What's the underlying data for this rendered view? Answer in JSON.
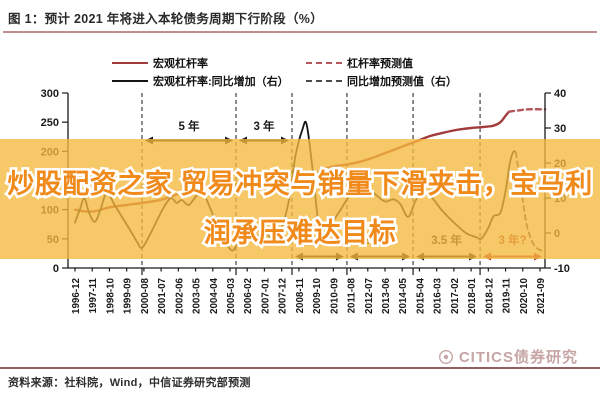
{
  "figure": {
    "title": "图 1：预计 2021 年将进入本轮债务周期下行阶段（%）",
    "title_rule_color": "#bd8f8f",
    "source": "资料来源：社科院，Wind，中信证券研究部预测",
    "watermark": "CITICS债券研究",
    "bottom_rule_color": "#8f6060"
  },
  "overlay": {
    "line1": "炒股配资之家 贸易冲突与销量下滑夹击，宝马利",
    "line2": "润承压难达目标",
    "text_color": "#f08a1b",
    "band_color": "rgba(245,184,61,0.78)"
  },
  "legend": {
    "items": [
      {
        "label": "宏观杠杆率",
        "style": "solid",
        "color": "#a23b3c"
      },
      {
        "label": "杠杆率预测值",
        "style": "dashed",
        "color": "#b4565e"
      },
      {
        "label": "宏观杠杆率:同比增加（右）",
        "style": "solid",
        "color": "#141414"
      },
      {
        "label": "同比增加预测值（右）",
        "style": "dashed",
        "color": "#4a4a4a"
      }
    ]
  },
  "chart_data": {
    "type": "line",
    "title": "预计 2021 年将进入本轮债务周期下行阶段（%）",
    "grid": false,
    "legend_position": "top",
    "x_labels": [
      "1996-12",
      "1997-11",
      "1998-10",
      "1999-09",
      "2000-08",
      "2001-07",
      "2002-06",
      "2003-05",
      "2004-04",
      "2005-03",
      "2006-02",
      "2007-01",
      "2007-12",
      "2008-11",
      "2009-10",
      "2010-09",
      "2011-08",
      "2012-07",
      "2013-06",
      "2014-05",
      "2015-04",
      "2016-03",
      "2017-02",
      "2018-01",
      "2018-12",
      "2019-11",
      "2020-10",
      "2021-09"
    ],
    "left_axis": {
      "range": [
        0,
        300
      ],
      "ticks": [
        0,
        50,
        100,
        150,
        200,
        250,
        300
      ]
    },
    "right_axis": {
      "range": [
        -10,
        40
      ],
      "ticks": [
        -10,
        0,
        10,
        20,
        30,
        40
      ]
    },
    "series": [
      {
        "name": "宏观杠杆率",
        "axis": "left",
        "style": "solid",
        "color": "#a23b3c",
        "points": [
          [
            0,
            100
          ],
          [
            0.6,
            97
          ],
          [
            1.2,
            97.5
          ],
          [
            2,
            104
          ],
          [
            3,
            108
          ],
          [
            4,
            112
          ],
          [
            5,
            117
          ],
          [
            6,
            127
          ],
          [
            7,
            136
          ],
          [
            7.6,
            139
          ],
          [
            8.4,
            141
          ],
          [
            9.2,
            143
          ],
          [
            10,
            144
          ],
          [
            10.8,
            145
          ],
          [
            11.4,
            146
          ],
          [
            12,
            143.5
          ],
          [
            12.7,
            145
          ],
          [
            13.3,
            150
          ],
          [
            13.8,
            158
          ],
          [
            14.3,
            168
          ],
          [
            15,
            174
          ],
          [
            15.7,
            177
          ],
          [
            16.4,
            181
          ],
          [
            17.1,
            187
          ],
          [
            18,
            197
          ],
          [
            19,
            208
          ],
          [
            19.8,
            217
          ],
          [
            20.6,
            226
          ],
          [
            21.4,
            232
          ],
          [
            22.2,
            237
          ],
          [
            23,
            240
          ],
          [
            23.8,
            242
          ],
          [
            24.3,
            244
          ],
          [
            24.7,
            250
          ],
          [
            25,
            261
          ],
          [
            25.2,
            268
          ]
        ]
      },
      {
        "name": "杠杆率预测值",
        "axis": "left",
        "style": "dashed",
        "color": "#b4565e",
        "points": [
          [
            25.2,
            268
          ],
          [
            25.7,
            270
          ],
          [
            26.3,
            272
          ],
          [
            27.3,
            272
          ]
        ]
      },
      {
        "name": "宏观杠杆率:同比增加（右）",
        "axis": "right",
        "style": "solid",
        "color": "#141414",
        "points": [
          [
            0,
            3
          ],
          [
            0.3,
            7
          ],
          [
            0.55,
            10
          ],
          [
            0.8,
            6
          ],
          [
            1.15,
            3.2
          ],
          [
            1.5,
            7
          ],
          [
            1.85,
            11.5
          ],
          [
            2.3,
            8
          ],
          [
            2.8,
            4
          ],
          [
            3.3,
            0
          ],
          [
            3.6,
            -2.5
          ],
          [
            3.9,
            -4.2
          ],
          [
            4.4,
            0
          ],
          [
            4.9,
            5
          ],
          [
            5.3,
            8.5
          ],
          [
            5.6,
            10
          ],
          [
            5.9,
            8.6
          ],
          [
            6.2,
            9.4
          ],
          [
            6.6,
            8
          ],
          [
            7,
            10.3
          ],
          [
            7.4,
            11.7
          ],
          [
            7.9,
            6.5
          ],
          [
            8.4,
            0.5
          ],
          [
            8.8,
            -3
          ],
          [
            9.15,
            -5
          ],
          [
            9.6,
            -2
          ],
          [
            10,
            -1
          ],
          [
            10.6,
            -0.6
          ],
          [
            11.1,
            -0.2
          ],
          [
            11.55,
            -2
          ],
          [
            12,
            1.5
          ],
          [
            12.45,
            10
          ],
          [
            12.8,
            22
          ],
          [
            13.2,
            29.5
          ],
          [
            13.45,
            31
          ],
          [
            13.8,
            18
          ],
          [
            14.1,
            4
          ],
          [
            14.4,
            -3
          ],
          [
            14.9,
            2.5
          ],
          [
            15.4,
            6.5
          ],
          [
            16,
            11
          ],
          [
            16.6,
            13.5
          ],
          [
            17.1,
            12.3
          ],
          [
            17.5,
            10.8
          ],
          [
            18,
            9
          ],
          [
            18.5,
            9.6
          ],
          [
            18.9,
            8.2
          ],
          [
            19.35,
            4.6
          ],
          [
            19.8,
            9.5
          ],
          [
            20.2,
            11.2
          ],
          [
            20.7,
            10.2
          ],
          [
            21.3,
            6.5
          ],
          [
            22,
            3
          ],
          [
            22.7,
            0
          ],
          [
            23.3,
            -1.2
          ],
          [
            23.6,
            -1.6
          ],
          [
            24,
            1.5
          ],
          [
            24.3,
            4.8
          ],
          [
            24.7,
            5.8
          ],
          [
            25,
            12
          ],
          [
            25.25,
            20
          ],
          [
            25.45,
            23.2
          ],
          [
            25.6,
            23
          ]
        ]
      },
      {
        "name": "同比增加预测值（右）",
        "axis": "right",
        "style": "dashed",
        "color": "#4a4a4a",
        "points": [
          [
            25.6,
            23
          ],
          [
            25.9,
            13
          ],
          [
            26.2,
            3
          ],
          [
            26.55,
            -2.5
          ],
          [
            26.9,
            -4.6
          ],
          [
            27.3,
            -5.2
          ]
        ]
      }
    ],
    "dividers_idx": [
      3.89,
      9.35,
      12.6,
      15.79,
      19.63,
      23.52
    ],
    "annotations": {
      "top": [
        {
          "label": "5 年",
          "from": 3.89,
          "to": 9.35,
          "color": "#1a1a1a"
        },
        {
          "label": "3 年",
          "from": 9.35,
          "to": 12.6,
          "color": "#1a1a1a"
        }
      ],
      "bottom": [
        {
          "label": "3 年",
          "from": 12.6,
          "to": 15.79,
          "color": "#1a1a1a"
        },
        {
          "label": "3.5 年",
          "from": 15.79,
          "to": 19.63,
          "color": "#1a1a1a"
        },
        {
          "label": "3.5 年",
          "from": 19.63,
          "to": 23.52,
          "color": "#1a1a1a"
        },
        {
          "label": "3 年?",
          "from": 23.52,
          "to": 27.29,
          "color": "#b0392e"
        }
      ]
    }
  }
}
